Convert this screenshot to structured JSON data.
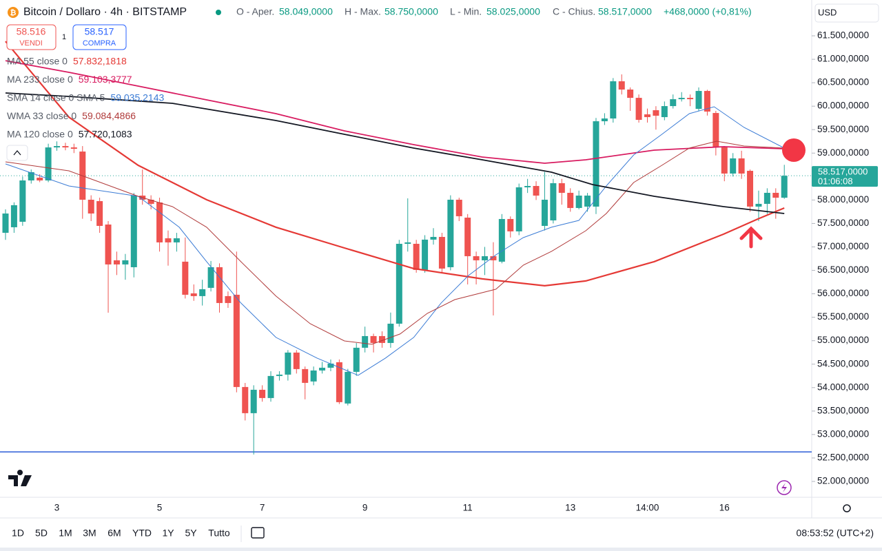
{
  "header": {
    "title": "Bitcoin / Dollaro · 4h · BITSTAMP",
    "open_label": "O - Aper.",
    "open": "58.049,0000",
    "high_label": "H - Max.",
    "high": "58.750,0000",
    "low_label": "L - Min.",
    "low": "58.025,0000",
    "close_label": "C - Chius.",
    "close": "58.517,0000",
    "change": "+468,0000 (+0,81%)",
    "currency": "USD"
  },
  "trade": {
    "sell_price": "58.516",
    "sell": "VENDI",
    "spread": "1",
    "buy_price": "58.517",
    "buy": "COMPRA"
  },
  "toolbar": {
    "ranges": [
      "1D",
      "5D",
      "1M",
      "3M",
      "6M",
      "YTD",
      "1Y",
      "5Y",
      "Tutto"
    ],
    "clock": "08:53:52 (UTC+2)"
  },
  "chart_data": {
    "type": "candlestick",
    "categories": [
      null,
      null,
      null,
      null,
      null,
      null,
      "3",
      null,
      null,
      null,
      null,
      null,
      null,
      null,
      null,
      null,
      null,
      null,
      "5",
      null,
      null,
      null,
      null,
      null,
      null,
      null,
      null,
      null,
      null,
      null,
      "7",
      null,
      null,
      null,
      null,
      null,
      null,
      null,
      null,
      null,
      null,
      null,
      "9",
      null,
      null,
      null,
      null,
      null,
      null,
      null,
      null,
      null,
      null,
      null,
      "11",
      null,
      null,
      null,
      null,
      null,
      null,
      null,
      null,
      null,
      null,
      null,
      "13",
      null,
      null,
      null,
      null,
      null,
      null,
      null,
      null,
      "14:00",
      null,
      null,
      null,
      null,
      null,
      null,
      null,
      null,
      "16",
      null,
      null,
      null,
      null,
      null,
      null,
      null
    ],
    "open": [
      57301,
      57419,
      57536,
      58417,
      58476,
      58417,
      59121,
      59150,
      59121,
      59033,
      58006,
      57976,
      57477,
      56714,
      56626,
      56567,
      58094,
      58006,
      57947,
      57184,
      57096,
      56685,
      56009,
      55951,
      56127,
      56567,
      55951,
      55980,
      54013,
      53455,
      53954,
      53778,
      54248,
      54277,
      54747,
      54395,
      54131,
      54365,
      54424,
      54541,
      53661,
      54336,
      54850,
      55099,
      55099,
      54952,
      55363,
      57066,
      57066,
      56509,
      57155,
      57213,
      56567,
      58006,
      57624,
      56802,
      56714,
      56802,
      56685,
      57595,
      57331,
      58270,
      58299,
      57448,
      57565,
      58358,
      58153,
      57830,
      57859,
      57859,
      59679,
      59738,
      60531,
      60355,
      60178,
      59826,
      59914,
      59767,
      60002,
      60149,
      60178,
      59943,
      60325,
      59855,
      59121,
      58564,
      58887,
      58622,
      57859,
      57918,
      58153,
      58049
    ],
    "high": [
      57800,
      57950,
      58500,
      58650,
      58550,
      59200,
      59250,
      59220,
      59200,
      59150,
      58100,
      58050,
      57550,
      56900,
      56850,
      58150,
      58650,
      58100,
      58050,
      57350,
      57300,
      57200,
      56200,
      56300,
      56700,
      56650,
      56050,
      56900,
      54100,
      54050,
      54050,
      54350,
      54350,
      54800,
      54800,
      54450,
      54450,
      54550,
      54600,
      54600,
      54400,
      54950,
      55300,
      55150,
      55200,
      55600,
      57150,
      58035,
      57150,
      57250,
      57400,
      57300,
      58100,
      58050,
      57700,
      56900,
      57000,
      57100,
      57700,
      57650,
      58350,
      58450,
      58400,
      58600,
      58450,
      58450,
      58250,
      58200,
      58150,
      59750,
      59850,
      60600,
      60678,
      60400,
      60250,
      59950,
      60000,
      60100,
      60250,
      60300,
      60250,
      60400,
      60350,
      59900,
      59150,
      59000,
      59050,
      58650,
      58200,
      58250,
      58250,
      58750
    ],
    "low": [
      57150,
      57300,
      57450,
      58350,
      58380,
      58380,
      59050,
      59060,
      59000,
      57600,
      57550,
      57300,
      55598,
      56400,
      56300,
      56350,
      57900,
      57800,
      56900,
      56600,
      56900,
      55900,
      55850,
      55750,
      56050,
      55600,
      55700,
      53900,
      53300,
      52574,
      53700,
      53700,
      54150,
      54150,
      54300,
      53750,
      54050,
      54300,
      54350,
      53650,
      53620,
      54250,
      54750,
      54750,
      54850,
      54850,
      55300,
      56900,
      56450,
      56450,
      57050,
      56450,
      56500,
      57550,
      56200,
      56200,
      56400,
      55539,
      56650,
      57200,
      57250,
      58150,
      58000,
      57350,
      57500,
      57900,
      57750,
      57800,
      57750,
      57700,
      59600,
      59650,
      60250,
      59900,
      59650,
      59650,
      59500,
      59700,
      59950,
      60100,
      60000,
      59900,
      59800,
      58950,
      58400,
      58500,
      58450,
      57750,
      57550,
      57700,
      57600,
      58025
    ],
    "close": [
      57712,
      57889,
      58417,
      58593,
      58417,
      59121,
      59150,
      59121,
      59092,
      58006,
      57712,
      57448,
      56626,
      56626,
      56714,
      58094,
      58006,
      57918,
      57096,
      57096,
      57184,
      55980,
      55951,
      56098,
      56567,
      55804,
      55804,
      54013,
      53455,
      53954,
      53778,
      54248,
      54277,
      54747,
      54395,
      54101,
      54365,
      54424,
      54512,
      53690,
      54336,
      54850,
      55099,
      54952,
      54952,
      55363,
      57066,
      57096,
      56509,
      57155,
      57213,
      56538,
      58006,
      57654,
      56802,
      56714,
      56802,
      56714,
      57595,
      57331,
      58270,
      58299,
      58094,
      58006,
      58358,
      58153,
      57830,
      58094,
      58094,
      59679,
      59738,
      60531,
      60355,
      60178,
      59709,
      59767,
      59797,
      60002,
      60149,
      60178,
      60149,
      60325,
      59885,
      59121,
      58564,
      58887,
      58564,
      57859,
      57918,
      58153,
      58049,
      58517
    ],
    "up_color": "#26a69a",
    "down_color": "#ef5350",
    "series": [
      {
        "name": "MA 55 close 0",
        "value_label": "57.832,1818",
        "color": "#e53935",
        "x": [
          0,
          7.4,
          15.5,
          23.5,
          31.6,
          39.6,
          47.7,
          55.7,
          63.0,
          67.8,
          75.8,
          83.9,
          87.9,
          91
        ],
        "values": [
          61382,
          59767,
          58740,
          58006,
          57419,
          56978,
          56538,
          56318,
          56171,
          56274,
          56685,
          57272,
          57595,
          57830
        ]
      },
      {
        "name": "MA 233 close 0",
        "value_label": "59.103,3777",
        "color": "#d81b60",
        "x": [
          0,
          7.4,
          15.5,
          23.5,
          31.6,
          39.6,
          47.7,
          55.7,
          63.0,
          67.8,
          75.8,
          83.9,
          91
        ],
        "values": [
          60971,
          60722,
          60428,
          60135,
          59841,
          59474,
          59180,
          58916,
          58784,
          58857,
          59063,
          59136,
          59092
        ]
      },
      {
        "name": "SMA 14 close 0 SMA 5",
        "value_label": "59.035,2143",
        "color": "#3a7bd5",
        "x": [
          0,
          7.4,
          15.5,
          20.3,
          23.5,
          27.5,
          31.6,
          36.4,
          41.2,
          44.4,
          47.7,
          50.9,
          54.1,
          57.3,
          60.5,
          63.8,
          67.0,
          70.2,
          73.4,
          76.7,
          79.9,
          82.8,
          86.3,
          91
        ],
        "values": [
          58769,
          58299,
          58079,
          57419,
          56685,
          55804,
          55070,
          54629,
          54262,
          54629,
          55070,
          55804,
          56391,
          56831,
          57198,
          57419,
          57565,
          58299,
          58960,
          59400,
          59841,
          59988,
          59547,
          59107
        ]
      },
      {
        "name": "WMA 33 close 0",
        "value_label": "59.084,4866",
        "color": "#b03a3a",
        "x": [
          0,
          7.4,
          15.5,
          19.5,
          23.5,
          27.5,
          31.6,
          35.6,
          39.6,
          42.8,
          46.1,
          49.3,
          52.5,
          57.3,
          60.5,
          63.8,
          67.8,
          70.2,
          73.4,
          76.7,
          79.9,
          83.1,
          86.3,
          91
        ],
        "values": [
          58813,
          58622,
          58079,
          57859,
          57419,
          56685,
          55951,
          55363,
          54996,
          54923,
          55143,
          55584,
          55877,
          56098,
          56611,
          56905,
          57345,
          57712,
          58373,
          58740,
          59107,
          59254,
          59151,
          59107
        ]
      },
      {
        "name": "MA 120 close 0",
        "value_label": "57.720,1083",
        "color": "#131722",
        "x": [
          0,
          7.4,
          19.5,
          31.6,
          39.6,
          47.7,
          55.7,
          63.8,
          68.6,
          75.8,
          83.9,
          91
        ],
        "values": [
          60281,
          60208,
          60061,
          59694,
          59400,
          59107,
          58857,
          58593,
          58329,
          58079,
          57859,
          57712
        ]
      }
    ],
    "ylim": [
      51662,
      62264
    ],
    "yticks": [
      {
        "value": 52000,
        "label": "52.000,0000"
      },
      {
        "value": 52500,
        "label": "52.500,0000"
      },
      {
        "value": 53000,
        "label": "53.000,0000"
      },
      {
        "value": 53500,
        "label": "53.500,0000"
      },
      {
        "value": 54000,
        "label": "54.000,0000"
      },
      {
        "value": 54500,
        "label": "54.500,0000"
      },
      {
        "value": 55000,
        "label": "55.000,0000"
      },
      {
        "value": 55500,
        "label": "55.500,0000"
      },
      {
        "value": 56000,
        "label": "56.000,0000"
      },
      {
        "value": 56500,
        "label": "56.500,0000"
      },
      {
        "value": 57000,
        "label": "57.000,0000"
      },
      {
        "value": 57500,
        "label": "57.500,0000"
      },
      {
        "value": 58000,
        "label": "58.000,0000"
      },
      {
        "value": 59000,
        "label": "59.000,0000"
      },
      {
        "value": 59500,
        "label": "59.500,0000"
      },
      {
        "value": 60000,
        "label": "60.000,0000"
      },
      {
        "value": 60500,
        "label": "60.500,0000"
      },
      {
        "value": 61000,
        "label": "61.000,0000"
      },
      {
        "value": 61500,
        "label": "61.500,0000"
      }
    ],
    "price_tag": {
      "value": 58517,
      "label": "58.517,0000",
      "countdown": "01:06:08",
      "color": "#26a69a"
    },
    "hline": {
      "value": 52630,
      "color": "#2a5bd7"
    }
  }
}
